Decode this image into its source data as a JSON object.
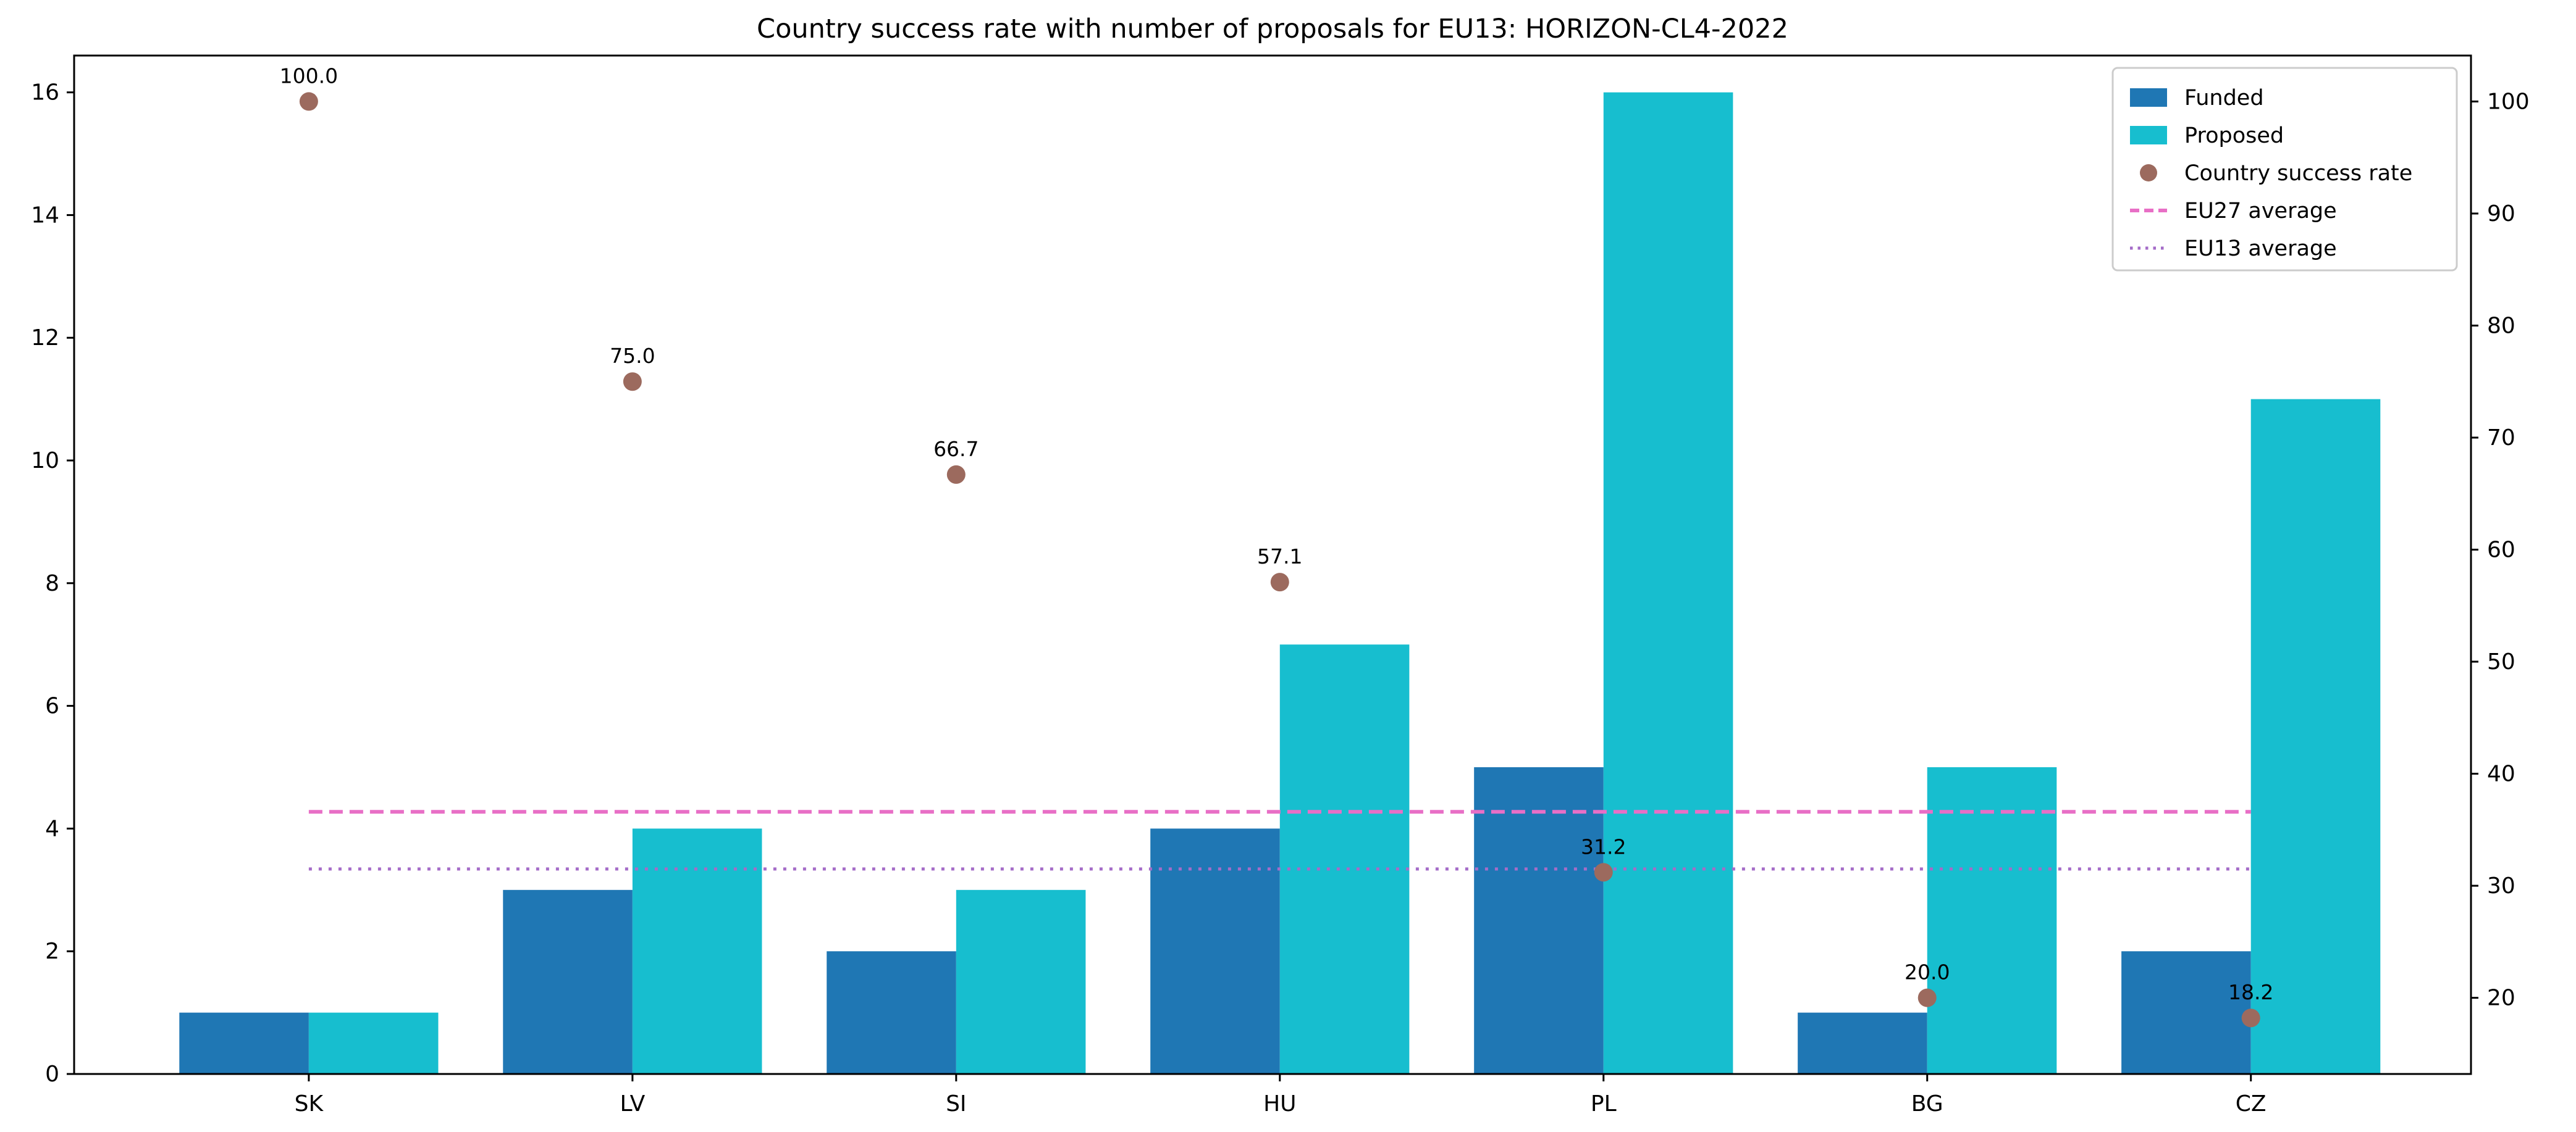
{
  "chart_data": {
    "type": "bar",
    "title": "Country success rate with number of proposals for EU13: HORIZON-CL4-2022",
    "categories": [
      "SK",
      "LV",
      "SI",
      "HU",
      "PL",
      "BG",
      "CZ"
    ],
    "series": [
      {
        "name": "Funded",
        "axis": "left",
        "values": [
          1,
          3,
          2,
          4,
          5,
          1,
          2
        ]
      },
      {
        "name": "Proposed",
        "axis": "left",
        "values": [
          1,
          4,
          3,
          7,
          16,
          5,
          11
        ]
      }
    ],
    "scatter": {
      "name": "Country success rate",
      "axis": "right",
      "values": [
        100.0,
        75.0,
        66.7,
        57.1,
        31.2,
        20.0,
        18.2
      ],
      "labels": [
        "100.0",
        "75.0",
        "66.7",
        "57.1",
        "31.2",
        "20.0",
        "18.2"
      ]
    },
    "reference_lines": [
      {
        "name": "EU27 average",
        "axis": "right",
        "value": 36.6,
        "style": "dashed"
      },
      {
        "name": "EU13 average",
        "axis": "right",
        "value": 31.5,
        "style": "dotted"
      }
    ],
    "left_axis": {
      "min": 0,
      "max": 16.6,
      "ticks": [
        0,
        2,
        4,
        6,
        8,
        10,
        12,
        14,
        16
      ]
    },
    "right_axis": {
      "min": 13.2,
      "max": 104.1,
      "ticks": [
        20,
        30,
        40,
        50,
        60,
        70,
        80,
        90,
        100
      ]
    },
    "x_axis": {
      "min": -0.725,
      "max": 6.68,
      "bar_width": 0.4
    },
    "legend": {
      "position": "upper-right",
      "entries": [
        {
          "label": "Funded",
          "swatch": "rect",
          "colorKey": "funded"
        },
        {
          "label": "Proposed",
          "swatch": "rect",
          "colorKey": "proposed"
        },
        {
          "label": "Country success rate",
          "swatch": "dot",
          "colorKey": "success"
        },
        {
          "label": "EU27 average",
          "swatch": "dash",
          "colorKey": "eu27"
        },
        {
          "label": "EU13 average",
          "swatch": "dotline",
          "colorKey": "eu13"
        }
      ]
    },
    "colors": {
      "funded": "#1f77b4",
      "proposed": "#17becf",
      "success": "#9c6a5e",
      "eu27": "#e86fc6",
      "eu13": "#a56cc8",
      "axis": "#000000",
      "legend_border": "#cccccc",
      "background": "#ffffff"
    }
  }
}
